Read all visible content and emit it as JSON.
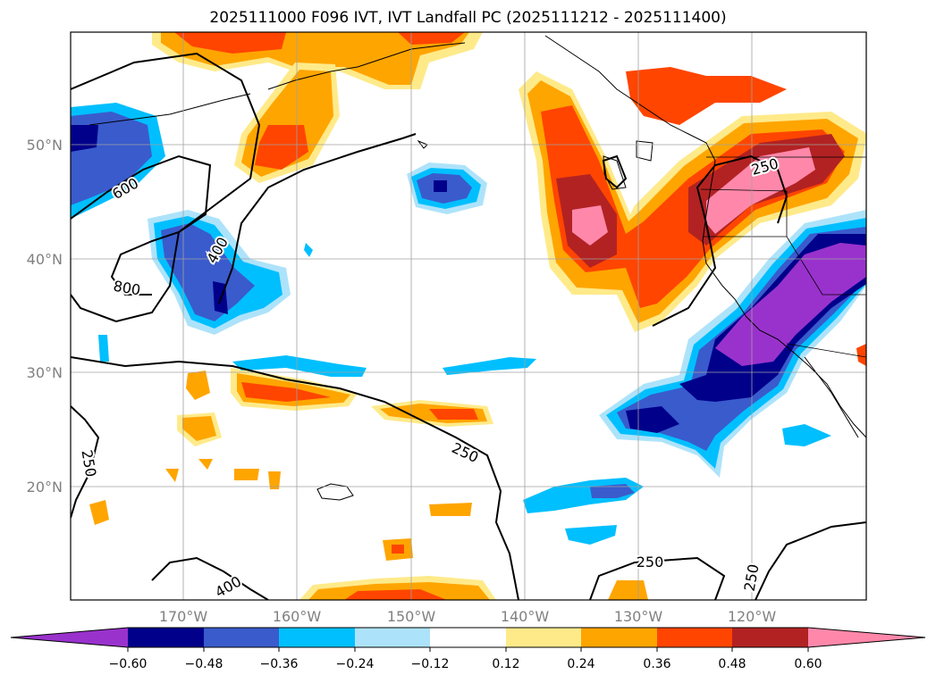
{
  "title": "2025111000 F096 IVT, IVT Landfall PC (2025111212 - 2025111400)",
  "colors": {
    "lt_neg_0_60": "#9932CC",
    "neg_0_60": "#00008B",
    "neg_0_48": "#3A5BCC",
    "neg_0_36": "#00BFFF",
    "neg_0_24": "#ADE3FA",
    "neutral": "#FFFFFF",
    "pos_0_12": "#FFEA8A",
    "pos_0_24": "#FFA500",
    "pos_0_36": "#FF4500",
    "pos_0_48": "#B22222",
    "gt_0_60": "#FF88AA"
  },
  "map": {
    "lat_labels": [
      "50°N",
      "40°N",
      "30°N",
      "20°N"
    ],
    "lon_labels": [
      "170°W",
      "160°W",
      "150°W",
      "140°W",
      "130°W",
      "120°W"
    ],
    "contour_labels": [
      "600",
      "800",
      "400",
      "250",
      "250",
      "250",
      "400",
      "250",
      "250"
    ]
  },
  "colorbar": {
    "ticks": [
      "−0.60",
      "−0.48",
      "−0.36",
      "−0.24",
      "−0.12",
      "0.12",
      "0.24",
      "0.36",
      "0.48",
      "0.60"
    ]
  }
}
